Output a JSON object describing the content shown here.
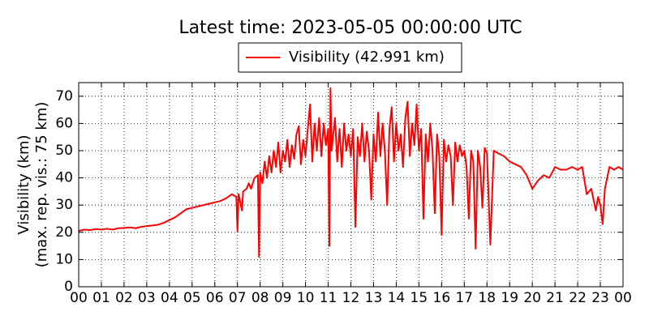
{
  "chart_data": {
    "type": "line",
    "title": "Latest time: 2023-05-05 00:00:00 UTC",
    "ylabel": [
      "Visibility (km)",
      "(max. rep. vis.: 75 km)"
    ],
    "legend": "upper center",
    "grid": true,
    "xlim": [
      0,
      24
    ],
    "ylim": [
      0,
      75
    ],
    "yticks": [
      0,
      10,
      20,
      30,
      40,
      50,
      60,
      70
    ],
    "xticks": [
      {
        "value": 0,
        "label": "00"
      },
      {
        "value": 1,
        "label": "01"
      },
      {
        "value": 2,
        "label": "02"
      },
      {
        "value": 3,
        "label": "03"
      },
      {
        "value": 4,
        "label": "04"
      },
      {
        "value": 5,
        "label": "05"
      },
      {
        "value": 6,
        "label": "06"
      },
      {
        "value": 7,
        "label": "07"
      },
      {
        "value": 8,
        "label": "08"
      },
      {
        "value": 9,
        "label": "09"
      },
      {
        "value": 10,
        "label": "10"
      },
      {
        "value": 11,
        "label": "11"
      },
      {
        "value": 12,
        "label": "12"
      },
      {
        "value": 13,
        "label": "13"
      },
      {
        "value": 14,
        "label": "14"
      },
      {
        "value": 15,
        "label": "15"
      },
      {
        "value": 16,
        "label": "16"
      },
      {
        "value": 17,
        "label": "17"
      },
      {
        "value": 18,
        "label": "18"
      },
      {
        "value": 19,
        "label": "19"
      },
      {
        "value": 20,
        "label": "20"
      },
      {
        "value": 21,
        "label": "21"
      },
      {
        "value": 22,
        "label": "22"
      },
      {
        "value": 23,
        "label": "23"
      },
      {
        "value": 24,
        "label": "00"
      }
    ],
    "x": [
      0,
      0.25,
      0.5,
      0.75,
      1,
      1.25,
      1.5,
      1.75,
      2,
      2.25,
      2.5,
      2.75,
      3,
      3.25,
      3.5,
      3.75,
      4,
      4.25,
      4.5,
      4.75,
      5,
      5.25,
      5.5,
      5.75,
      6,
      6.25,
      6.5,
      6.75,
      6.95,
      7.0,
      7.05,
      7.2,
      7.25,
      7.4,
      7.5,
      7.6,
      7.75,
      7.9,
      7.95,
      8.0,
      8.1,
      8.2,
      8.3,
      8.4,
      8.5,
      8.6,
      8.7,
      8.8,
      8.9,
      9.0,
      9.1,
      9.2,
      9.3,
      9.4,
      9.5,
      9.6,
      9.7,
      9.8,
      9.9,
      10.0,
      10.1,
      10.2,
      10.3,
      10.4,
      10.5,
      10.6,
      10.7,
      10.8,
      10.9,
      11.0,
      11.05,
      11.1,
      11.15,
      11.3,
      11.4,
      11.5,
      11.6,
      11.7,
      11.8,
      11.9,
      12.0,
      12.1,
      12.2,
      12.3,
      12.4,
      12.5,
      12.6,
      12.7,
      12.8,
      12.9,
      13.0,
      13.1,
      13.2,
      13.3,
      13.4,
      13.5,
      13.6,
      13.7,
      13.8,
      13.9,
      14.0,
      14.1,
      14.2,
      14.3,
      14.4,
      14.5,
      14.6,
      14.7,
      14.8,
      14.9,
      15.0,
      15.1,
      15.2,
      15.3,
      15.4,
      15.5,
      15.6,
      15.7,
      15.8,
      15.9,
      16.0,
      16.1,
      16.2,
      16.3,
      16.4,
      16.5,
      16.6,
      16.7,
      16.8,
      16.9,
      17.0,
      17.1,
      17.2,
      17.3,
      17.4,
      17.5,
      17.6,
      17.7,
      17.8,
      17.9,
      18.0,
      18.15,
      18.3,
      18.5,
      18.75,
      19,
      19.25,
      19.5,
      19.75,
      20,
      20.25,
      20.5,
      20.75,
      21,
      21.25,
      21.5,
      21.75,
      22,
      22.2,
      22.4,
      22.6,
      22.8,
      22.9,
      23.0,
      23.1,
      23.2,
      23.4,
      23.6,
      23.8,
      24
    ],
    "series": [
      {
        "name": "Visibility (42.991 km)",
        "color": "#ff0000",
        "values": [
          20.5,
          21,
          20.8,
          21.2,
          21,
          21.3,
          21,
          21.5,
          21.6,
          21.8,
          21.5,
          22,
          22.3,
          22.5,
          22.8,
          23.5,
          24.5,
          25.5,
          27,
          28.5,
          29,
          29.5,
          30,
          30.5,
          31,
          31.5,
          32.5,
          34,
          33,
          20.5,
          34,
          28,
          35,
          36,
          38,
          36,
          40,
          41,
          11,
          42,
          38,
          46,
          40,
          48,
          42,
          50,
          44,
          53,
          42,
          50,
          46,
          54,
          44,
          52,
          47,
          56,
          59,
          45,
          54,
          48,
          58,
          67,
          46,
          60,
          50,
          62,
          48,
          60,
          52,
          58,
          15,
          73,
          50,
          62,
          46,
          58,
          44,
          60,
          50,
          56,
          48,
          58,
          22,
          55,
          48,
          60,
          46,
          57,
          50,
          32,
          56,
          46,
          64,
          48,
          60,
          50,
          30,
          58,
          66,
          46,
          60,
          50,
          56,
          44,
          62,
          68,
          48,
          60,
          52,
          67,
          50,
          58,
          25,
          56,
          46,
          60,
          50,
          27,
          56,
          48,
          19,
          54,
          46,
          52,
          48,
          30,
          53,
          46,
          52,
          48,
          50,
          44,
          25,
          50,
          46,
          14,
          50,
          44,
          29,
          51,
          49,
          15.5,
          50,
          49,
          48,
          46,
          45,
          44,
          41,
          36,
          39,
          41,
          40,
          44,
          43,
          43,
          44,
          43,
          44,
          34,
          36,
          28,
          33,
          30,
          23,
          36,
          44,
          43,
          44,
          43
        ]
      }
    ]
  }
}
